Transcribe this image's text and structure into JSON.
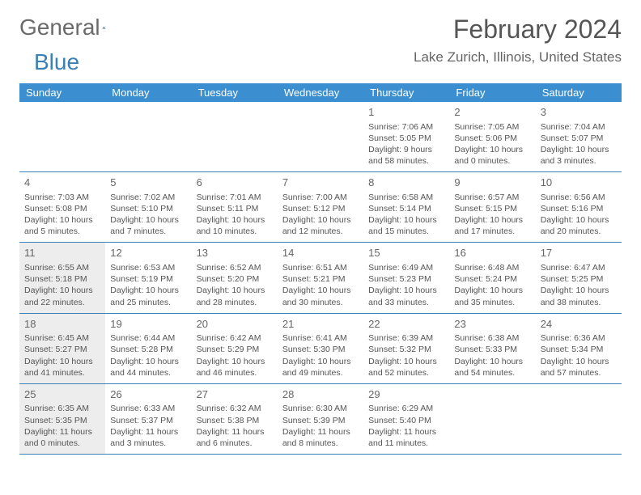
{
  "logo": {
    "text1": "General",
    "text2": "Blue"
  },
  "header": {
    "month_title": "February 2024",
    "location": "Lake Zurich, Illinois, United States"
  },
  "colors": {
    "header_bg": "#3b8ecf",
    "header_text": "#ffffff",
    "border": "#3b7fb5",
    "shaded_bg": "#ededed",
    "body_text": "#555555"
  },
  "daynames": [
    "Sunday",
    "Monday",
    "Tuesday",
    "Wednesday",
    "Thursday",
    "Friday",
    "Saturday"
  ],
  "weeks": [
    [
      {
        "blank": true
      },
      {
        "blank": true
      },
      {
        "blank": true
      },
      {
        "blank": true
      },
      {
        "num": "1",
        "sunrise": "Sunrise: 7:06 AM",
        "sunset": "Sunset: 5:05 PM",
        "day1": "Daylight: 9 hours",
        "day2": "and 58 minutes."
      },
      {
        "num": "2",
        "sunrise": "Sunrise: 7:05 AM",
        "sunset": "Sunset: 5:06 PM",
        "day1": "Daylight: 10 hours",
        "day2": "and 0 minutes."
      },
      {
        "num": "3",
        "sunrise": "Sunrise: 7:04 AM",
        "sunset": "Sunset: 5:07 PM",
        "day1": "Daylight: 10 hours",
        "day2": "and 3 minutes."
      }
    ],
    [
      {
        "num": "4",
        "sunrise": "Sunrise: 7:03 AM",
        "sunset": "Sunset: 5:08 PM",
        "day1": "Daylight: 10 hours",
        "day2": "and 5 minutes."
      },
      {
        "num": "5",
        "sunrise": "Sunrise: 7:02 AM",
        "sunset": "Sunset: 5:10 PM",
        "day1": "Daylight: 10 hours",
        "day2": "and 7 minutes."
      },
      {
        "num": "6",
        "sunrise": "Sunrise: 7:01 AM",
        "sunset": "Sunset: 5:11 PM",
        "day1": "Daylight: 10 hours",
        "day2": "and 10 minutes."
      },
      {
        "num": "7",
        "sunrise": "Sunrise: 7:00 AM",
        "sunset": "Sunset: 5:12 PM",
        "day1": "Daylight: 10 hours",
        "day2": "and 12 minutes."
      },
      {
        "num": "8",
        "sunrise": "Sunrise: 6:58 AM",
        "sunset": "Sunset: 5:14 PM",
        "day1": "Daylight: 10 hours",
        "day2": "and 15 minutes."
      },
      {
        "num": "9",
        "sunrise": "Sunrise: 6:57 AM",
        "sunset": "Sunset: 5:15 PM",
        "day1": "Daylight: 10 hours",
        "day2": "and 17 minutes."
      },
      {
        "num": "10",
        "sunrise": "Sunrise: 6:56 AM",
        "sunset": "Sunset: 5:16 PM",
        "day1": "Daylight: 10 hours",
        "day2": "and 20 minutes."
      }
    ],
    [
      {
        "num": "11",
        "shaded": true,
        "sunrise": "Sunrise: 6:55 AM",
        "sunset": "Sunset: 5:18 PM",
        "day1": "Daylight: 10 hours",
        "day2": "and 22 minutes."
      },
      {
        "num": "12",
        "sunrise": "Sunrise: 6:53 AM",
        "sunset": "Sunset: 5:19 PM",
        "day1": "Daylight: 10 hours",
        "day2": "and 25 minutes."
      },
      {
        "num": "13",
        "sunrise": "Sunrise: 6:52 AM",
        "sunset": "Sunset: 5:20 PM",
        "day1": "Daylight: 10 hours",
        "day2": "and 28 minutes."
      },
      {
        "num": "14",
        "sunrise": "Sunrise: 6:51 AM",
        "sunset": "Sunset: 5:21 PM",
        "day1": "Daylight: 10 hours",
        "day2": "and 30 minutes."
      },
      {
        "num": "15",
        "sunrise": "Sunrise: 6:49 AM",
        "sunset": "Sunset: 5:23 PM",
        "day1": "Daylight: 10 hours",
        "day2": "and 33 minutes."
      },
      {
        "num": "16",
        "sunrise": "Sunrise: 6:48 AM",
        "sunset": "Sunset: 5:24 PM",
        "day1": "Daylight: 10 hours",
        "day2": "and 35 minutes."
      },
      {
        "num": "17",
        "sunrise": "Sunrise: 6:47 AM",
        "sunset": "Sunset: 5:25 PM",
        "day1": "Daylight: 10 hours",
        "day2": "and 38 minutes."
      }
    ],
    [
      {
        "num": "18",
        "shaded": true,
        "sunrise": "Sunrise: 6:45 AM",
        "sunset": "Sunset: 5:27 PM",
        "day1": "Daylight: 10 hours",
        "day2": "and 41 minutes."
      },
      {
        "num": "19",
        "sunrise": "Sunrise: 6:44 AM",
        "sunset": "Sunset: 5:28 PM",
        "day1": "Daylight: 10 hours",
        "day2": "and 44 minutes."
      },
      {
        "num": "20",
        "sunrise": "Sunrise: 6:42 AM",
        "sunset": "Sunset: 5:29 PM",
        "day1": "Daylight: 10 hours",
        "day2": "and 46 minutes."
      },
      {
        "num": "21",
        "sunrise": "Sunrise: 6:41 AM",
        "sunset": "Sunset: 5:30 PM",
        "day1": "Daylight: 10 hours",
        "day2": "and 49 minutes."
      },
      {
        "num": "22",
        "sunrise": "Sunrise: 6:39 AM",
        "sunset": "Sunset: 5:32 PM",
        "day1": "Daylight: 10 hours",
        "day2": "and 52 minutes."
      },
      {
        "num": "23",
        "sunrise": "Sunrise: 6:38 AM",
        "sunset": "Sunset: 5:33 PM",
        "day1": "Daylight: 10 hours",
        "day2": "and 54 minutes."
      },
      {
        "num": "24",
        "sunrise": "Sunrise: 6:36 AM",
        "sunset": "Sunset: 5:34 PM",
        "day1": "Daylight: 10 hours",
        "day2": "and 57 minutes."
      }
    ],
    [
      {
        "num": "25",
        "shaded": true,
        "sunrise": "Sunrise: 6:35 AM",
        "sunset": "Sunset: 5:35 PM",
        "day1": "Daylight: 11 hours",
        "day2": "and 0 minutes."
      },
      {
        "num": "26",
        "sunrise": "Sunrise: 6:33 AM",
        "sunset": "Sunset: 5:37 PM",
        "day1": "Daylight: 11 hours",
        "day2": "and 3 minutes."
      },
      {
        "num": "27",
        "sunrise": "Sunrise: 6:32 AM",
        "sunset": "Sunset: 5:38 PM",
        "day1": "Daylight: 11 hours",
        "day2": "and 6 minutes."
      },
      {
        "num": "28",
        "sunrise": "Sunrise: 6:30 AM",
        "sunset": "Sunset: 5:39 PM",
        "day1": "Daylight: 11 hours",
        "day2": "and 8 minutes."
      },
      {
        "num": "29",
        "sunrise": "Sunrise: 6:29 AM",
        "sunset": "Sunset: 5:40 PM",
        "day1": "Daylight: 11 hours",
        "day2": "and 11 minutes."
      },
      {
        "blank": true
      },
      {
        "blank": true
      }
    ]
  ]
}
